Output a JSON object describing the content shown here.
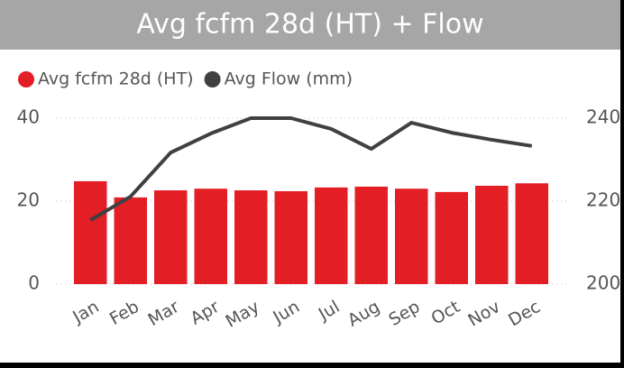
{
  "chart_data": {
    "type": "bar-line",
    "title": "Avg fcfm 28d (HT) + Flow",
    "categories": [
      "Jan",
      "Feb",
      "Mar",
      "Apr",
      "May",
      "Jun",
      "Jul",
      "Aug",
      "Sep",
      "Oct",
      "Nov",
      "Dec"
    ],
    "series": [
      {
        "name": "Avg fcfm 28d (HT)",
        "color": "#e31e24",
        "type": "bar",
        "values": [
          24.8,
          20.9,
          22.6,
          23.0,
          22.6,
          22.4,
          23.3,
          23.5,
          23.0,
          22.2,
          23.7,
          24.3
        ]
      },
      {
        "name": "Avg Flow (mm)",
        "color": "#404040",
        "type": "line",
        "axis": "y2",
        "values": [
          215.4,
          221.1,
          231.7,
          236.3,
          240,
          240,
          237.4,
          232.6,
          238.9,
          236.5,
          234.8,
          233.3
        ]
      }
    ],
    "ylim": [
      0,
      40
    ],
    "yticks": [
      0,
      20,
      40
    ],
    "y2lim": [
      200,
      240
    ],
    "y2ticks": [
      200,
      220,
      240
    ],
    "grid": true,
    "legend": "top-left"
  }
}
